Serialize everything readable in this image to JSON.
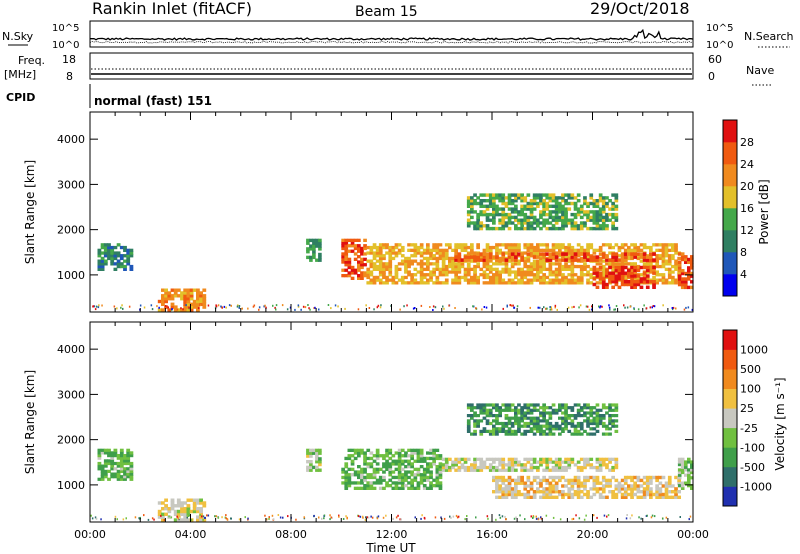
{
  "header": {
    "station": "Rankin Inlet (fitACF)",
    "beam": "Beam 15",
    "date": "29/Oct/2018"
  },
  "top_panels": {
    "nsky_label": "N.Sky",
    "nsky_ticks": [
      "10^5",
      "10^0"
    ],
    "nsearch_label": "N.Search",
    "nsearch_ticks": [
      "10^5",
      "10^0"
    ],
    "freq_label": "Freq.",
    "freq_unit": "[MHz]",
    "freq_ticks": [
      "18",
      "8"
    ],
    "nave_label": "Nave",
    "nave_ticks": [
      "60",
      "0"
    ],
    "cpid_label": "CPID",
    "cpid_value": "normal (fast) 151"
  },
  "x_axis": {
    "label": "Time UT",
    "ticks": [
      "00:00",
      "04:00",
      "08:00",
      "12:00",
      "16:00",
      "20:00",
      "00:00"
    ]
  },
  "colorbars": {
    "power": {
      "label": "Power [dB]",
      "ticks": [
        "28",
        "24",
        "20",
        "16",
        "12",
        "8",
        "4"
      ],
      "colors": [
        "#0000ee",
        "#1f57b8",
        "#2f7f62",
        "#44a84a",
        "#e3c02a",
        "#f08a1e",
        "#f05a10",
        "#e01010"
      ]
    },
    "velocity": {
      "label": "Velocity [m s⁻¹]",
      "ticks": [
        "1000",
        "500",
        "100",
        "25",
        "-25",
        "-100",
        "-500",
        "-1000"
      ],
      "colors": [
        "#2030b0",
        "#2f6f6a",
        "#3f9f4a",
        "#70c040",
        "#c8c8c0",
        "#f0c040",
        "#f08a1e",
        "#f05a10",
        "#e01010"
      ]
    }
  },
  "chart_data": [
    {
      "type": "heatmap",
      "title": "",
      "xlabel": "Time UT",
      "ylabel": "Slant Range [km]",
      "xlim": [
        0,
        24
      ],
      "ylim": [
        180,
        4600
      ],
      "y_ticks": [
        1000,
        2000,
        3000,
        4000
      ],
      "colorbar": "Power [dB]",
      "clim": [
        0,
        32
      ],
      "regions": [
        {
          "t0": 0.3,
          "t1": 1.7,
          "r0": 1100,
          "r1": 1700,
          "value": 10
        },
        {
          "t0": 2.7,
          "t1": 4.6,
          "r0": 200,
          "r1": 700,
          "value": 22
        },
        {
          "t0": 8.6,
          "t1": 9.2,
          "r0": 1300,
          "r1": 1800,
          "value": 12
        },
        {
          "t0": 10.0,
          "t1": 11.0,
          "r0": 900,
          "r1": 1800,
          "value": 26
        },
        {
          "t0": 11.0,
          "t1": 23.5,
          "r0": 800,
          "r1": 1700,
          "value": 20
        },
        {
          "t0": 14.5,
          "t1": 22.5,
          "r0": 1300,
          "r1": 1500,
          "value": 26
        },
        {
          "t0": 20.0,
          "t1": 22.5,
          "r0": 700,
          "r1": 1200,
          "value": 28
        },
        {
          "t0": 15.0,
          "t1": 21.0,
          "r0": 2000,
          "r1": 2800,
          "value": 14
        },
        {
          "t0": 23.4,
          "t1": 24.0,
          "r0": 700,
          "r1": 1500,
          "value": 26
        }
      ]
    },
    {
      "type": "heatmap",
      "title": "",
      "xlabel": "Time UT",
      "ylabel": "Slant Range [km]",
      "xlim": [
        0,
        24
      ],
      "ylim": [
        180,
        4600
      ],
      "y_ticks": [
        1000,
        2000,
        3000,
        4000
      ],
      "colorbar": "Velocity [m s⁻¹]",
      "clim": [
        -1000,
        1000
      ],
      "regions": [
        {
          "t0": 0.3,
          "t1": 1.7,
          "r0": 1100,
          "r1": 1800,
          "value": -300
        },
        {
          "t0": 2.7,
          "t1": 4.6,
          "r0": 200,
          "r1": 700,
          "value": 80
        },
        {
          "t0": 8.6,
          "t1": 9.2,
          "r0": 1300,
          "r1": 1800,
          "value": -100
        },
        {
          "t0": 10.0,
          "t1": 14.0,
          "r0": 900,
          "r1": 1800,
          "value": -300
        },
        {
          "t0": 14.0,
          "t1": 21.0,
          "r0": 1300,
          "r1": 1600,
          "value": 0
        },
        {
          "t0": 15.0,
          "t1": 21.0,
          "r0": 2100,
          "r1": 2800,
          "value": -500
        },
        {
          "t0": 16.0,
          "t1": 23.5,
          "r0": 700,
          "r1": 1200,
          "value": 150
        },
        {
          "t0": 23.4,
          "t1": 24.0,
          "r0": 900,
          "r1": 1600,
          "value": -200
        }
      ]
    }
  ]
}
